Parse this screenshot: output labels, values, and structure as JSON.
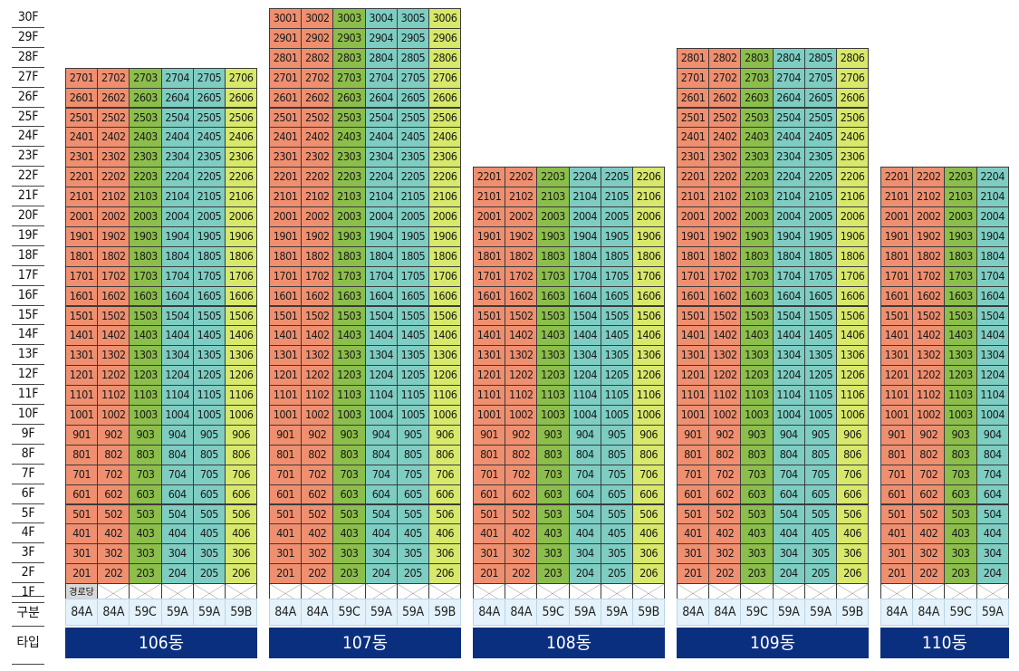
{
  "floors": [
    "30F",
    "29F",
    "28F",
    "27F",
    "26F",
    "25F",
    "24F",
    "23F",
    "22F",
    "21F",
    "20F",
    "19F",
    "18F",
    "17F",
    "16F",
    "15F",
    "14F",
    "13F",
    "12F",
    "11F",
    "10F",
    "9F",
    "8F",
    "7F",
    "6F",
    "5F",
    "4F",
    "3F",
    "2F",
    "1F"
  ],
  "row_labels": {
    "type_row": "구분",
    "dong_row": "타입"
  },
  "senior_center_label": "경로당",
  "colors": {
    "84A": "#ef8f6f",
    "59C": "#8bbe4a",
    "59A": "#7ecdc3",
    "59B": "#d8e86a",
    "type_row_bg": "#e4f2fb",
    "dong_bar": "#0b2f7f"
  },
  "buildings": [
    {
      "name": "106동",
      "top_floor": 27,
      "units": 6,
      "unit_types": [
        "84A",
        "84A",
        "59C",
        "59A",
        "59A",
        "59B"
      ],
      "senior_center": true
    },
    {
      "name": "107동",
      "top_floor": 30,
      "units": 6,
      "unit_types": [
        "84A",
        "84A",
        "59C",
        "59A",
        "59A",
        "59B"
      ],
      "senior_center": false
    },
    {
      "name": "108동",
      "top_floor": 22,
      "units": 6,
      "unit_types": [
        "84A",
        "84A",
        "59C",
        "59A",
        "59A",
        "59B"
      ],
      "senior_center": false
    },
    {
      "name": "109동",
      "top_floor": 28,
      "units": 6,
      "unit_types": [
        "84A",
        "84A",
        "59C",
        "59A",
        "59A",
        "59B"
      ],
      "senior_center": false
    },
    {
      "name": "110동",
      "top_floor": 22,
      "units": 4,
      "unit_types": [
        "84A",
        "84A",
        "59C",
        "59A"
      ],
      "senior_center": false
    }
  ]
}
